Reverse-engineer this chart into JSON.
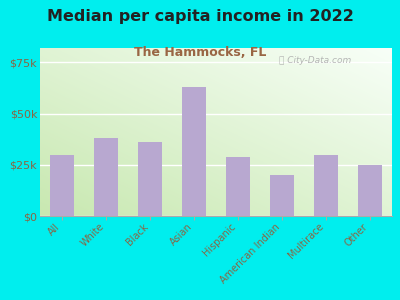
{
  "title": "Median per capita income in 2022",
  "subtitle": "The Hammocks, FL",
  "categories": [
    "All",
    "White",
    "Black",
    "Asian",
    "Hispanic",
    "American Indian",
    "Multirace",
    "Other"
  ],
  "values": [
    30000,
    38000,
    36000,
    63000,
    29000,
    20000,
    30000,
    25000
  ],
  "bar_color": "#b8a8d0",
  "background_outer": "#00eeee",
  "gradient_bottom_left": "#c8e8b0",
  "gradient_top_right": "#f8fff8",
  "title_color": "#222222",
  "subtitle_color": "#996644",
  "tick_label_color": "#886644",
  "ytick_labels": [
    "$0",
    "$25k",
    "$50k",
    "$75k"
  ],
  "ytick_values": [
    0,
    25000,
    50000,
    75000
  ],
  "ylim": [
    0,
    82000
  ],
  "figsize": [
    4.0,
    3.0
  ],
  "dpi": 100
}
